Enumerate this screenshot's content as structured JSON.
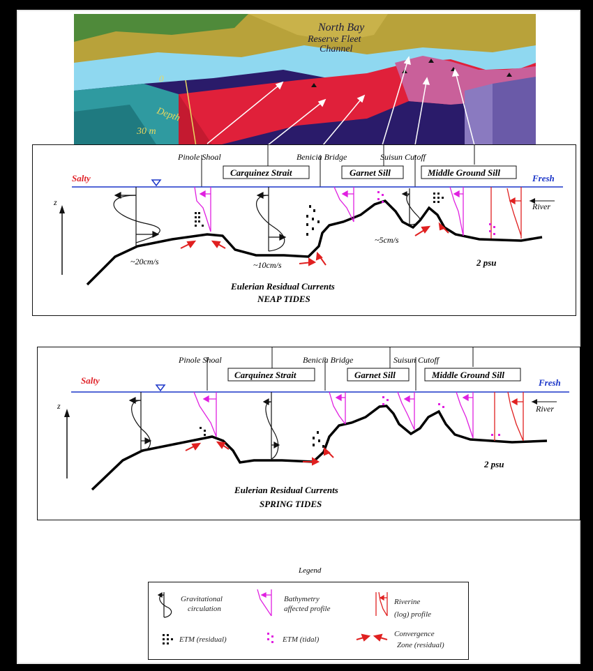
{
  "map": {
    "title_line1": "North Bay",
    "title_line2": "Reserve Fleet",
    "title_line3": "Channel",
    "depth_top": "0",
    "depth_label": "Depth",
    "depth_bottom": "30 m"
  },
  "neap": {
    "label_salty": "Salty",
    "label_fresh": "Fresh",
    "label_river": "River",
    "label_z": "z",
    "locations": {
      "pinole": "Pinole Shoal",
      "carquinez": "Carquinez Strait",
      "benicia": "Benicia Bridge",
      "garnet": "Garnet Sill",
      "suisun": "Suisun Cutoff",
      "middle": "Middle Ground Sill"
    },
    "speeds": [
      "~20cm/s",
      "~10cm/s",
      "~5cm/s"
    ],
    "salinity": "2 psu",
    "caption_line1": "Eulerian Residual Currents",
    "caption_line2": "NEAP TIDES"
  },
  "spring": {
    "label_salty": "Salty",
    "label_fresh": "Fresh",
    "label_river": "River",
    "label_z": "z",
    "locations": {
      "pinole": "Pinole Shoal",
      "carquinez": "Carquinez Strait",
      "benicia": "Benicia Bridge",
      "garnet": "Garnet Sill",
      "suisun": "Suisun Cutoff",
      "middle": "Middle Ground Sill"
    },
    "salinity": "2 psu",
    "caption_line1": "Eulerian Residual Currents",
    "caption_line2": "SPRING TIDES"
  },
  "legend": {
    "title": "Legend",
    "gravitational": [
      "Gravitational",
      "circulation"
    ],
    "bathymetry": [
      "Bathymetry",
      "affected profile"
    ],
    "riverine": [
      "Riverine",
      "(log) profile"
    ],
    "etm_residual": "ETM (residual)",
    "etm_tidal": "ETM (tidal)",
    "convergence": [
      "Convergence",
      "Zone (residual)"
    ]
  },
  "colors": {
    "salty": "#e0242a",
    "fresh": "#1a35c8",
    "water_line": "#1a35c8",
    "bathy_profile": "#e020e0",
    "river_profile": "#e02020",
    "map_land": "#b8a23a",
    "map_water": "#8fd8f0",
    "map_red": "#e0203a"
  }
}
